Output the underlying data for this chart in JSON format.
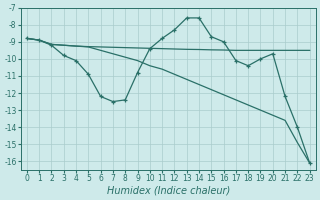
{
  "xlabel": "Humidex (Indice chaleur)",
  "bg_color": "#ceeaea",
  "grid_color": "#aacccc",
  "line_color": "#2a7068",
  "xlim": [
    -0.5,
    23.5
  ],
  "ylim_top": -7.0,
  "ylim_bottom": -16.5,
  "xticks": [
    0,
    1,
    2,
    3,
    4,
    5,
    6,
    7,
    8,
    9,
    10,
    11,
    12,
    13,
    14,
    15,
    16,
    17,
    18,
    19,
    20,
    21,
    22,
    23
  ],
  "yticks": [
    -7,
    -8,
    -9,
    -10,
    -11,
    -12,
    -13,
    -14,
    -15,
    -16
  ],
  "series1_x": [
    0,
    1,
    2,
    3,
    4,
    5,
    6,
    7,
    8,
    9,
    10,
    11,
    12,
    13,
    14,
    15,
    16,
    17,
    18,
    19,
    20,
    21,
    22,
    23
  ],
  "series1_y": [
    -8.8,
    -8.9,
    -9.2,
    -9.8,
    -10.1,
    -10.9,
    -12.2,
    -12.5,
    -12.4,
    -10.8,
    -9.4,
    -8.8,
    -8.3,
    -7.6,
    -7.6,
    -8.7,
    -9.0,
    -10.1,
    -10.4,
    -10.0,
    -9.7,
    -12.2,
    -14.0,
    -16.1
  ],
  "series2_x": [
    0,
    1,
    2,
    3,
    4,
    5,
    6,
    7,
    8,
    9,
    10,
    11,
    12,
    13,
    14,
    15,
    16,
    17,
    18,
    19,
    20,
    21,
    22,
    23
  ],
  "series2_y": [
    -8.8,
    -8.9,
    -9.15,
    -9.2,
    -9.25,
    -9.28,
    -9.3,
    -9.32,
    -9.34,
    -9.36,
    -9.38,
    -9.4,
    -9.42,
    -9.44,
    -9.45,
    -9.47,
    -9.48,
    -9.5,
    -9.5,
    -9.5,
    -9.5,
    -9.5,
    -9.5,
    -9.5
  ],
  "series3_x": [
    0,
    1,
    2,
    3,
    4,
    5,
    6,
    7,
    8,
    9,
    10,
    11,
    12,
    13,
    14,
    15,
    16,
    17,
    18,
    19,
    20,
    21,
    22,
    23
  ],
  "series3_y": [
    -8.8,
    -8.9,
    -9.15,
    -9.2,
    -9.25,
    -9.3,
    -9.5,
    -9.7,
    -9.9,
    -10.1,
    -10.4,
    -10.6,
    -10.9,
    -11.2,
    -11.5,
    -11.8,
    -12.1,
    -12.4,
    -12.7,
    -13.0,
    -13.3,
    -13.6,
    -14.9,
    -16.1
  ],
  "linewidth": 0.9,
  "markersize": 3.5,
  "tick_fontsize": 5.5,
  "label_fontsize": 7
}
